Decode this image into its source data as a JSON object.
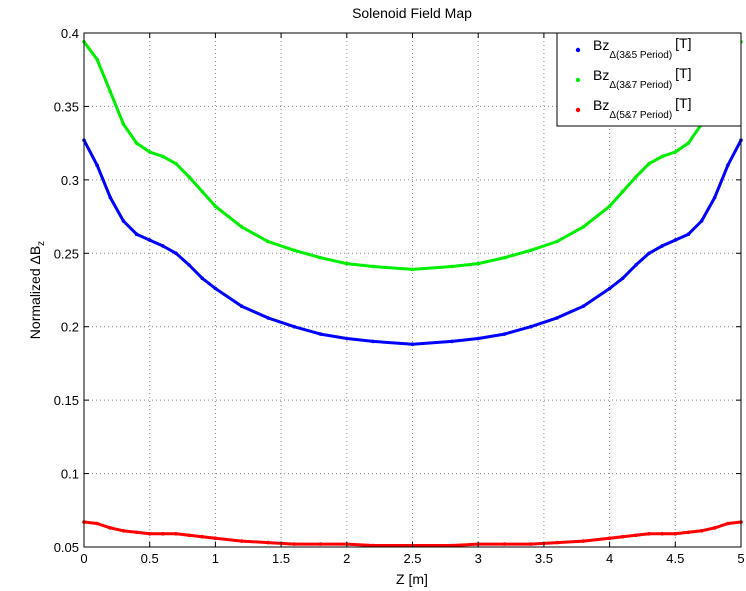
{
  "chart_data": {
    "type": "line",
    "title": "Solenoid Field Map",
    "xlabel": "Z [m]",
    "ylabel": "Normalized ΔB",
    "ylabel_sub": "z",
    "xlim": [
      0,
      5
    ],
    "ylim": [
      0.05,
      0.4
    ],
    "xticks": [
      "0",
      "0.5",
      "1",
      "1.5",
      "2",
      "2.5",
      "3",
      "3.5",
      "4",
      "4.5",
      "5"
    ],
    "yticks": [
      "0.05",
      "0.1",
      "0.15",
      "0.2",
      "0.25",
      "0.3",
      "0.35",
      "0.4"
    ],
    "grid": true,
    "legend_position": "top-right",
    "x": [
      0,
      0.1,
      0.2,
      0.3,
      0.4,
      0.5,
      0.6,
      0.7,
      0.8,
      0.9,
      1.0,
      1.2,
      1.4,
      1.6,
      1.8,
      2.0,
      2.2,
      2.5
    ],
    "series": [
      {
        "name_main": "Bz",
        "name_sub": "Δ(3&5 Period)",
        "name_unit": "[T]",
        "color": "#0000ff",
        "values": [
          0.327,
          0.31,
          0.288,
          0.272,
          0.263,
          0.259,
          0.255,
          0.25,
          0.242,
          0.233,
          0.226,
          0.214,
          0.206,
          0.2,
          0.195,
          0.192,
          0.19,
          0.188
        ]
      },
      {
        "name_main": "Bz",
        "name_sub": "Δ(3&7 Period)",
        "name_unit": "[T]",
        "color": "#00ee00",
        "values": [
          0.394,
          0.382,
          0.36,
          0.338,
          0.325,
          0.319,
          0.316,
          0.311,
          0.302,
          0.292,
          0.282,
          0.268,
          0.258,
          0.252,
          0.247,
          0.243,
          0.241,
          0.239
        ]
      },
      {
        "name_main": "Bz",
        "name_sub": "Δ(5&7 Period)",
        "name_unit": "[T]",
        "color": "#ff0000",
        "values": [
          0.067,
          0.066,
          0.063,
          0.061,
          0.06,
          0.059,
          0.059,
          0.059,
          0.058,
          0.057,
          0.056,
          0.054,
          0.053,
          0.052,
          0.052,
          0.052,
          0.051,
          0.051
        ]
      }
    ]
  }
}
